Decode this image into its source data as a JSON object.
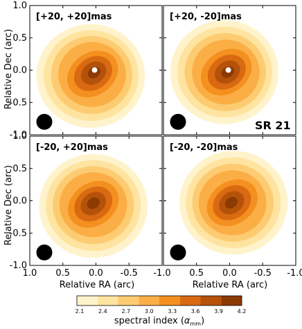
{
  "chart_data": {
    "type": "heatmap",
    "target": "SR 21",
    "xlabel": "Relative RA (arc)",
    "ylabel": "Relative Dec (arc)",
    "xlim": [
      1.0,
      -1.0
    ],
    "ylim": [
      -1.0,
      1.0
    ],
    "xticks": [
      "1.0",
      "0.5",
      "0.0",
      "-0.5",
      "-1.0"
    ],
    "yticks": [
      "1.0",
      "0.5",
      "0.0",
      "-0.5",
      "-1.0"
    ],
    "panels": [
      {
        "label": "[+20, +20]mas",
        "peak": [
          0.02,
          -0.03
        ],
        "peak_level": 4.2,
        "offset": [
          0.06,
          -0.06
        ],
        "hole": true
      },
      {
        "label": "[+20, -20]mas",
        "peak": [
          0.02,
          -0.03
        ],
        "peak_level": 4.2,
        "offset": [
          0.06,
          0.0
        ],
        "hole": true
      },
      {
        "label": "[-20, +20]mas",
        "peak": [
          0.04,
          -0.03
        ],
        "peak_level": 4.2,
        "offset": [
          0.0,
          -0.05
        ],
        "hole": false
      },
      {
        "label": "[-20, -20]mas",
        "peak": [
          -0.02,
          -0.03
        ],
        "peak_level": 4.2,
        "offset": [
          -0.04,
          0.0
        ],
        "hole": false
      }
    ],
    "beam": {
      "x": 0.78,
      "y": -0.8,
      "radius": 0.12
    },
    "colorbar": {
      "label": "spectral index (α_mm)",
      "ticks": [
        "2.1",
        "2.4",
        "2.7",
        "3.0",
        "3.3",
        "3.6",
        "3.9",
        "4.2"
      ],
      "levels": [
        2.1,
        2.4,
        2.7,
        3.0,
        3.3,
        3.6,
        3.9,
        4.2
      ],
      "colors": [
        "#fff3cc",
        "#fee4a0",
        "#fdcc72",
        "#fcae46",
        "#f3901f",
        "#d96a12",
        "#b5520a",
        "#8c3a04"
      ]
    }
  }
}
